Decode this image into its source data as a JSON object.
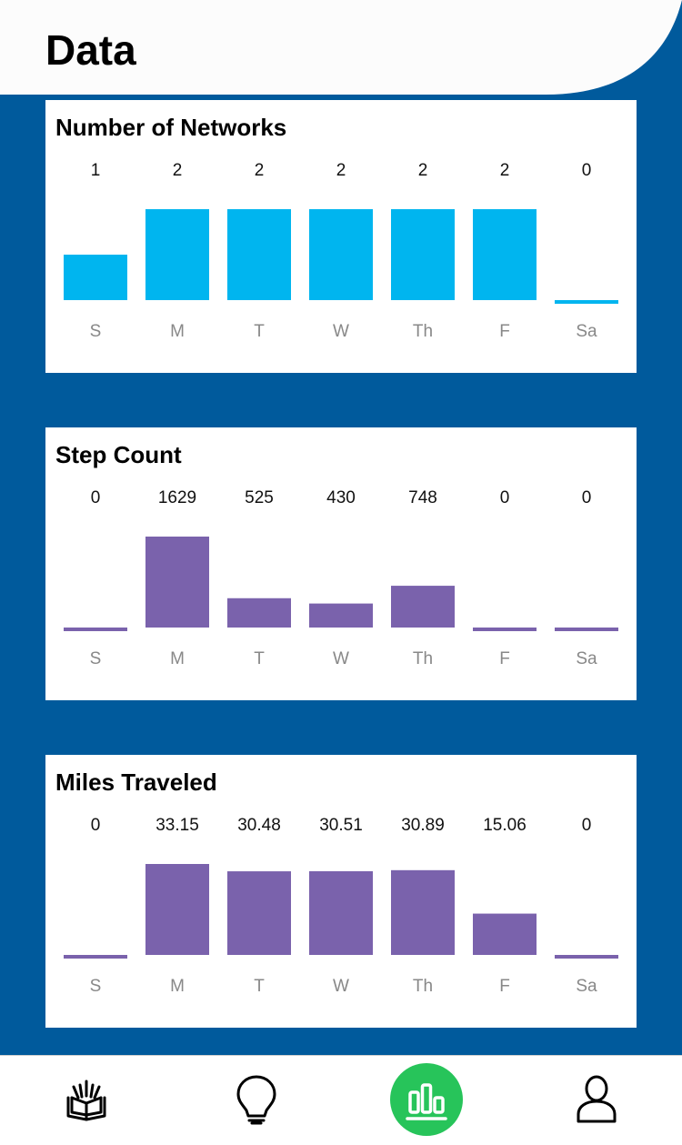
{
  "header": {
    "title": "Data"
  },
  "colors": {
    "background": "#005a9c",
    "networks_bar": "#00b5ef",
    "steps_bar": "#7a62ac",
    "miles_bar": "#7a62ac",
    "active_tab": "#27c45a"
  },
  "chart_data": [
    {
      "type": "bar",
      "title": "Number of Networks",
      "categories": [
        "S",
        "M",
        "T",
        "W",
        "Th",
        "F",
        "Sa"
      ],
      "values": [
        1,
        2,
        2,
        2,
        2,
        2,
        0
      ],
      "value_labels": [
        "1",
        "2",
        "2",
        "2",
        "2",
        "2",
        "0"
      ],
      "ylim": [
        0,
        2
      ],
      "grid": false,
      "color": "#00b5ef"
    },
    {
      "type": "bar",
      "title": "Step Count",
      "categories": [
        "S",
        "M",
        "T",
        "W",
        "Th",
        "F",
        "Sa"
      ],
      "values": [
        0,
        1629,
        525,
        430,
        748,
        0,
        0
      ],
      "value_labels": [
        "0",
        "1629",
        "525",
        "430",
        "748",
        "0",
        "0"
      ],
      "ylim": [
        0,
        1629
      ],
      "grid": false,
      "color": "#7a62ac"
    },
    {
      "type": "bar",
      "title": "Miles Traveled",
      "categories": [
        "S",
        "M",
        "T",
        "W",
        "Th",
        "F",
        "Sa"
      ],
      "values": [
        0,
        33.15,
        30.48,
        30.51,
        30.89,
        15.06,
        0
      ],
      "value_labels": [
        "0",
        "33.15",
        "30.48",
        "30.51",
        "30.89",
        "15.06",
        "0"
      ],
      "ylim": [
        0,
        33.15
      ],
      "grid": false,
      "color": "#7a62ac"
    }
  ],
  "nav": {
    "items": [
      {
        "icon": "open-book-icon",
        "active": false
      },
      {
        "icon": "lightbulb-icon",
        "active": false
      },
      {
        "icon": "bar-chart-icon",
        "active": true
      },
      {
        "icon": "user-icon",
        "active": false
      }
    ]
  }
}
